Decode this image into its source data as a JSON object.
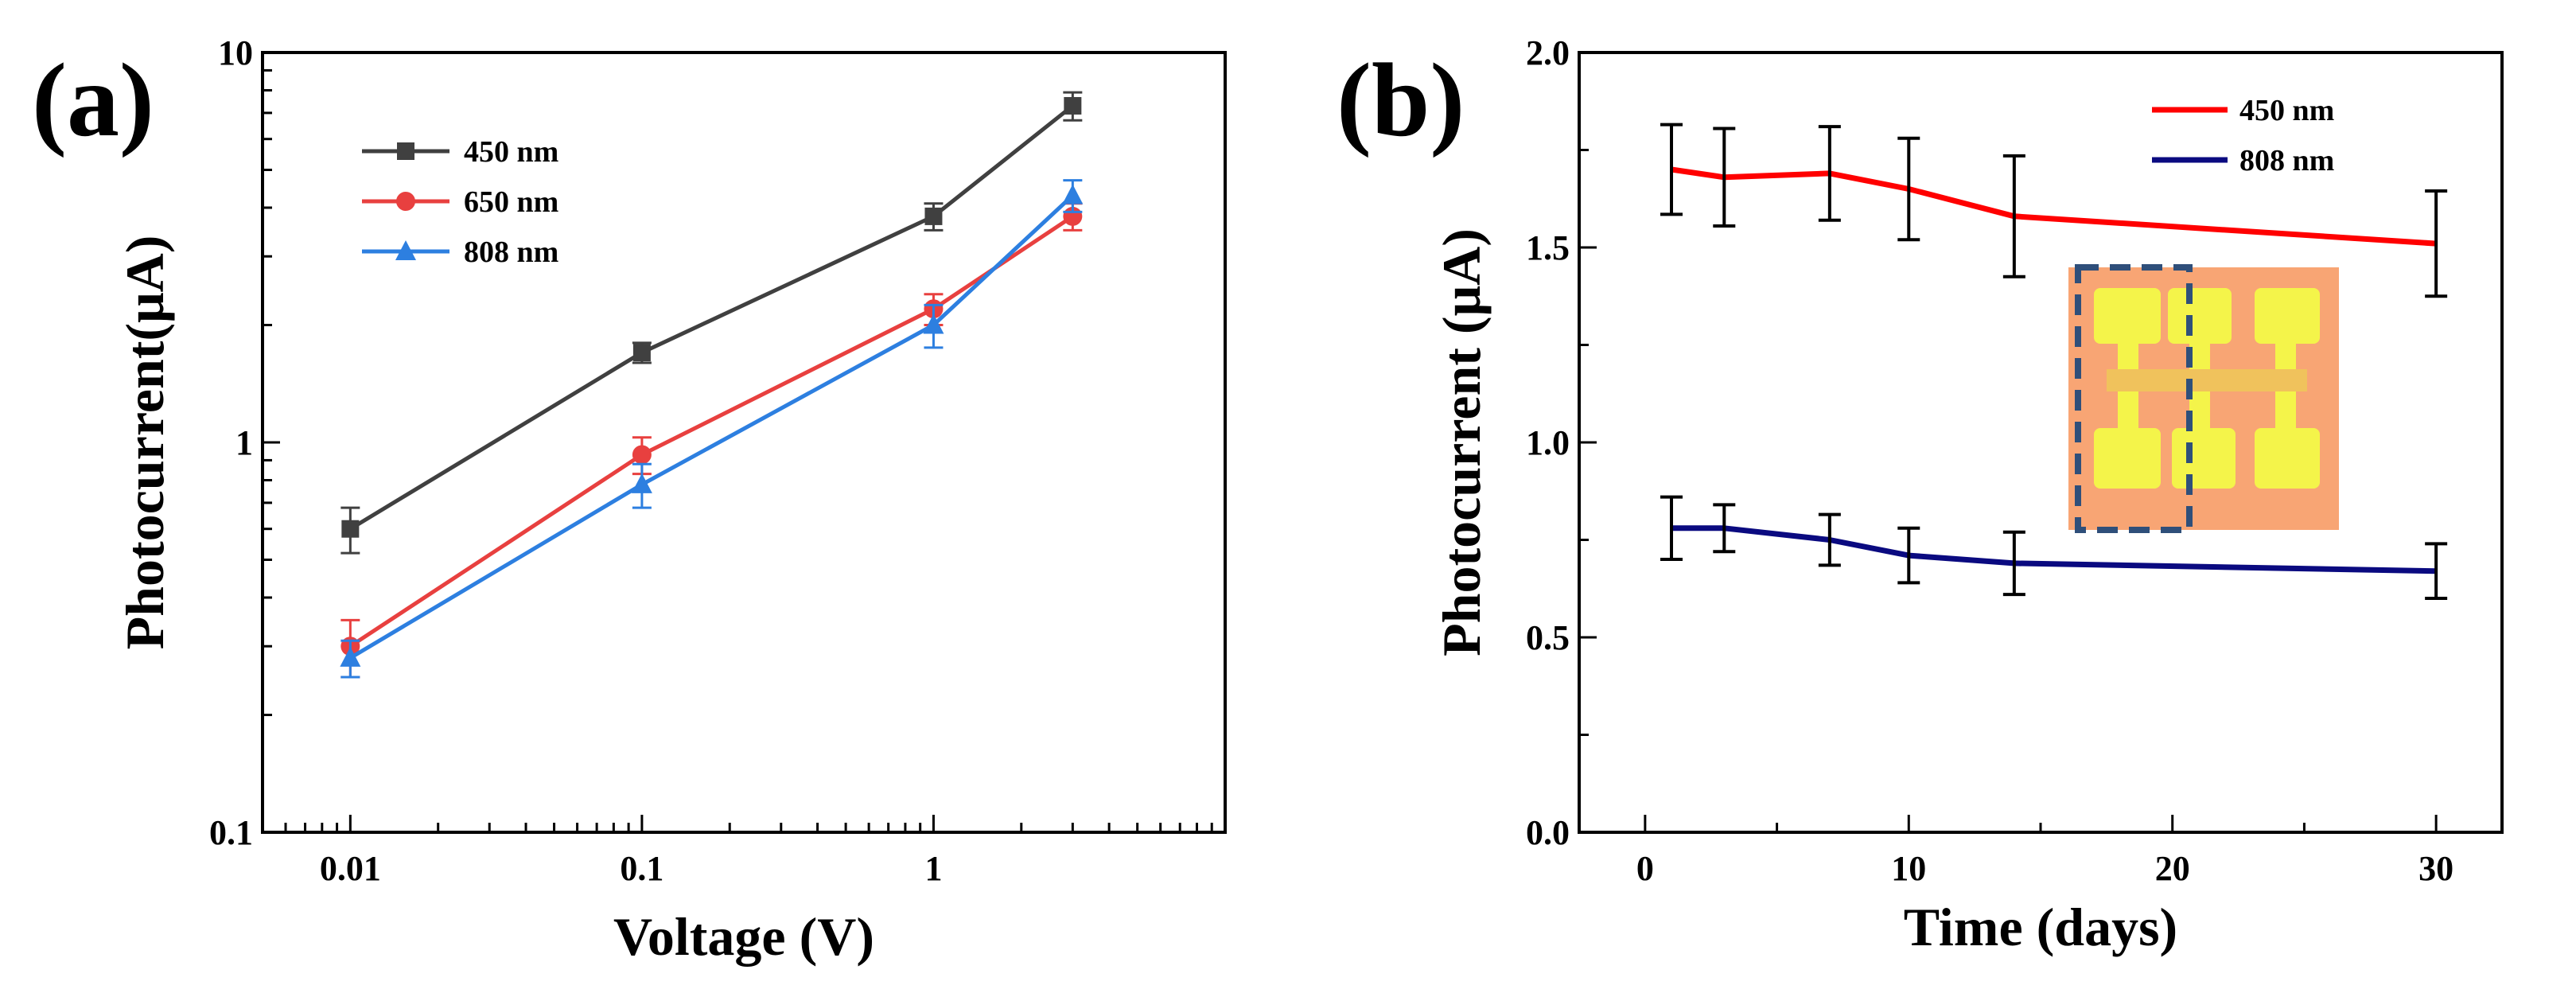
{
  "chart_data": [
    {
      "panel_label": "(a)",
      "type": "line",
      "xscale": "log",
      "yscale": "log",
      "xlabel": "Voltage (V)",
      "ylabel": "Photocurrent(μA)",
      "xlim": [
        0.005,
        10
      ],
      "ylim": [
        0.1,
        10
      ],
      "x_ticks": [
        0.01,
        0.1,
        1
      ],
      "x_tick_labels": [
        "0.01",
        "0.1",
        "1"
      ],
      "y_ticks": [
        0.1,
        1,
        10
      ],
      "y_tick_labels": [
        "0.1",
        "1",
        "10"
      ],
      "grid": false,
      "legend_position": "top-left",
      "x": [
        0.01,
        0.1,
        1,
        3
      ],
      "series": [
        {
          "name": "450 nm",
          "color": "#404040",
          "marker": "square",
          "values": [
            0.6,
            1.7,
            3.8,
            7.3
          ],
          "errors": [
            0.08,
            0.1,
            0.3,
            0.6
          ]
        },
        {
          "name": "650 nm",
          "color": "#e8403f",
          "marker": "circle",
          "values": [
            0.3,
            0.93,
            2.2,
            3.8
          ],
          "errors": [
            0.05,
            0.1,
            0.2,
            0.3
          ]
        },
        {
          "name": "808 nm",
          "color": "#2d7fe0",
          "marker": "triangle",
          "values": [
            0.28,
            0.78,
            2.0,
            4.3
          ],
          "errors": [
            0.03,
            0.1,
            0.25,
            0.4
          ]
        }
      ]
    },
    {
      "panel_label": "(b)",
      "type": "line",
      "xscale": "linear",
      "yscale": "linear",
      "xlabel": "Time (days)",
      "ylabel": "Photocurrent (μA)",
      "xlim": [
        -2.5,
        32.5
      ],
      "ylim": [
        0,
        2.0
      ],
      "x_ticks": [
        0,
        10,
        20,
        30
      ],
      "x_tick_labels": [
        "0",
        "10",
        "20",
        "30"
      ],
      "y_ticks": [
        0,
        0.5,
        1.0,
        1.5,
        2.0
      ],
      "y_tick_labels": [
        "0.0",
        "0.5",
        "1.0",
        "1.5",
        "2.0"
      ],
      "grid": false,
      "legend_position": "top-right",
      "inset": "device-photo",
      "series": [
        {
          "name": "450 nm",
          "color": "#ff0000",
          "x": [
            1,
            3,
            7,
            10,
            14,
            30
          ],
          "values": [
            1.7,
            1.68,
            1.69,
            1.65,
            1.58,
            1.51
          ],
          "errors": [
            0.115,
            0.125,
            0.12,
            0.13,
            0.155,
            0.135
          ]
        },
        {
          "name": "808 nm",
          "color": "#0a0a80",
          "x": [
            1,
            3,
            7,
            10,
            14,
            30
          ],
          "values": [
            0.78,
            0.78,
            0.75,
            0.71,
            0.69,
            0.67
          ],
          "errors": [
            0.08,
            0.06,
            0.065,
            0.07,
            0.08,
            0.07
          ]
        }
      ]
    }
  ]
}
